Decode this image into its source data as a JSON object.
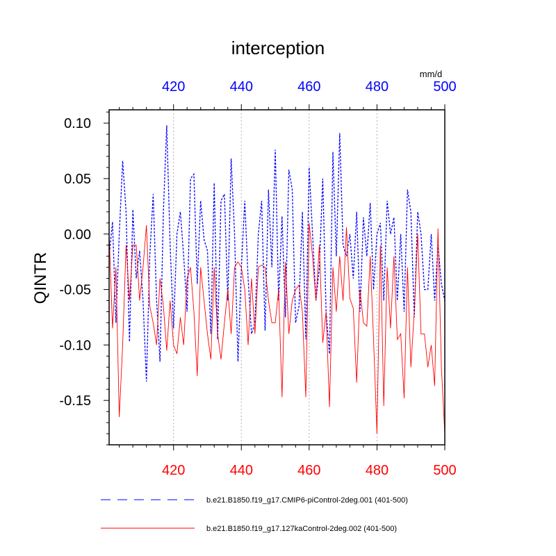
{
  "chart_data": {
    "type": "line",
    "title": "interception",
    "ylabel": "QINTR",
    "units_label": "mm/d",
    "xlim": [
      401,
      500
    ],
    "ylim": [
      -0.19,
      0.112
    ],
    "x_ticks": [
      420,
      440,
      460,
      480,
      500
    ],
    "y_ticks": [
      0.1,
      0.05,
      0.0,
      -0.05,
      -0.1,
      -0.15
    ],
    "y_tick_labels": [
      "0.10",
      "0.05",
      "0.00",
      "-0.05",
      "-0.10",
      "-0.15"
    ],
    "bottom_axis_color": "#ff0000",
    "top_axis_color": "#0000ff",
    "vertical_grid": true,
    "x": [
      401,
      402,
      403,
      404,
      405,
      406,
      407,
      408,
      409,
      410,
      411,
      412,
      413,
      414,
      415,
      416,
      417,
      418,
      419,
      420,
      421,
      422,
      423,
      424,
      425,
      426,
      427,
      428,
      429,
      430,
      431,
      432,
      433,
      434,
      435,
      436,
      437,
      438,
      439,
      440,
      441,
      442,
      443,
      444,
      445,
      446,
      447,
      448,
      449,
      450,
      451,
      452,
      453,
      454,
      455,
      456,
      457,
      458,
      459,
      460,
      461,
      462,
      463,
      464,
      465,
      466,
      467,
      468,
      469,
      470,
      471,
      472,
      473,
      474,
      475,
      476,
      477,
      478,
      479,
      480,
      481,
      482,
      483,
      484,
      485,
      486,
      487,
      488,
      489,
      490,
      491,
      492,
      493,
      494,
      495,
      496,
      497,
      498,
      499,
      500
    ],
    "series": [
      {
        "name": "b.e21.B1850.f19_g17.CMIP6-piControl-2deg.001 (401-500)",
        "color": "#0000ff",
        "style": "dashed",
        "values": [
          -0.02,
          0.011,
          -0.08,
          0.0,
          0.066,
          0.02,
          -0.097,
          0.022,
          -0.04,
          -0.015,
          -0.06,
          -0.133,
          -0.02,
          0.036,
          -0.06,
          -0.115,
          0.02,
          0.098,
          -0.01,
          -0.085,
          0.0,
          0.02,
          -0.02,
          -0.07,
          0.05,
          0.054,
          -0.045,
          0.03,
          -0.005,
          -0.015,
          -0.09,
          0.046,
          -0.095,
          0.03,
          0.036,
          -0.06,
          0.068,
          0.0,
          -0.115,
          -0.03,
          0.03,
          -0.04,
          -0.09,
          -0.08,
          0.0,
          0.03,
          -0.087,
          0.04,
          -0.03,
          0.076,
          -0.06,
          0.016,
          -0.075,
          0.058,
          0.04,
          -0.08,
          -0.065,
          0.02,
          -0.095,
          0.06,
          0.0,
          -0.06,
          -0.03,
          0.05,
          -0.07,
          -0.108,
          0.074,
          -0.02,
          0.091,
          -0.01,
          -0.02,
          0.0,
          -0.04,
          0.02,
          -0.07,
          0.015,
          -0.02,
          0.028,
          -0.05,
          0.0,
          0.01,
          -0.06,
          0.03,
          0.0,
          0.015,
          -0.06,
          0.0,
          -0.07,
          0.04,
          0.02,
          -0.075,
          0.02,
          0.0,
          -0.05,
          -0.05,
          0.0,
          -0.06,
          -0.01,
          -0.045,
          -0.06
        ]
      },
      {
        "name": "b.e21.B1850.f19_g17.127kaControl-2deg.002 (401-500)",
        "color": "#ff0000",
        "style": "solid",
        "values": [
          0.0,
          -0.085,
          -0.03,
          -0.165,
          -0.1,
          -0.01,
          -0.06,
          -0.01,
          -0.01,
          -0.06,
          -0.03,
          0.008,
          -0.065,
          -0.08,
          -0.1,
          -0.04,
          -0.065,
          -0.105,
          -0.06,
          -0.1,
          -0.108,
          -0.075,
          -0.1,
          -0.04,
          -0.03,
          -0.07,
          -0.128,
          -0.03,
          -0.06,
          -0.09,
          -0.113,
          -0.03,
          -0.09,
          -0.113,
          -0.08,
          -0.05,
          -0.09,
          -0.03,
          -0.025,
          -0.03,
          -0.05,
          -0.1,
          -0.04,
          -0.09,
          -0.03,
          -0.028,
          -0.03,
          -0.06,
          -0.08,
          -0.08,
          -0.05,
          -0.147,
          -0.025,
          -0.09,
          -0.06,
          -0.05,
          -0.046,
          -0.07,
          -0.147,
          0.01,
          -0.02,
          -0.06,
          -0.01,
          -0.098,
          -0.07,
          -0.156,
          -0.03,
          -0.07,
          -0.02,
          -0.06,
          0.006,
          -0.058,
          -0.067,
          -0.134,
          -0.05,
          -0.08,
          -0.083,
          -0.02,
          -0.095,
          -0.18,
          -0.01,
          -0.155,
          -0.03,
          -0.085,
          -0.02,
          -0.095,
          -0.09,
          -0.148,
          -0.03,
          -0.12,
          -0.07,
          -0.0,
          -0.09,
          -0.09,
          -0.12,
          -0.1,
          -0.137,
          0.005,
          -0.12,
          -0.18
        ]
      }
    ]
  }
}
